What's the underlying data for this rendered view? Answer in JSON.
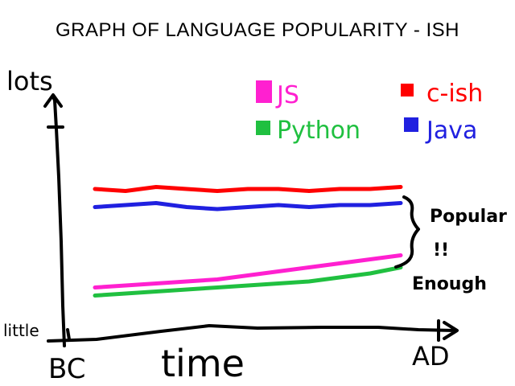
{
  "chart_data": {
    "type": "line",
    "title": "GRAPH OF LANGUAGE POPULARITY - ISH",
    "xlabel": "time",
    "ylabel": "lots",
    "x_ticks": [
      "BC",
      "AD"
    ],
    "y_ticks": [
      "little",
      "lots"
    ],
    "ylim": [
      0,
      100
    ],
    "xlim": [
      0,
      100
    ],
    "x": [
      0,
      10,
      20,
      30,
      40,
      50,
      60,
      70,
      80,
      90,
      100
    ],
    "series": [
      {
        "name": "c-ish",
        "color": "#ff0000",
        "values": [
          70,
          69,
          71,
          70,
          69,
          70,
          70,
          69,
          70,
          70,
          71
        ]
      },
      {
        "name": "Java",
        "color": "#2020e0",
        "values": [
          61,
          62,
          63,
          61,
          60,
          61,
          62,
          61,
          62,
          62,
          63
        ]
      },
      {
        "name": "JS",
        "color": "#ff20d0",
        "values": [
          21,
          22,
          23,
          24,
          25,
          27,
          29,
          31,
          33,
          35,
          37
        ]
      },
      {
        "name": "Python",
        "color": "#20c040",
        "values": [
          17,
          18,
          19,
          20,
          21,
          22,
          23,
          24,
          26,
          28,
          31
        ]
      }
    ],
    "legend": [
      "JS",
      "c-ish",
      "Python",
      "Java"
    ],
    "legend_placement": "top-right",
    "annotation": {
      "line1": "Popular",
      "line2": "!!",
      "line3": "Enough"
    },
    "grid": false
  }
}
